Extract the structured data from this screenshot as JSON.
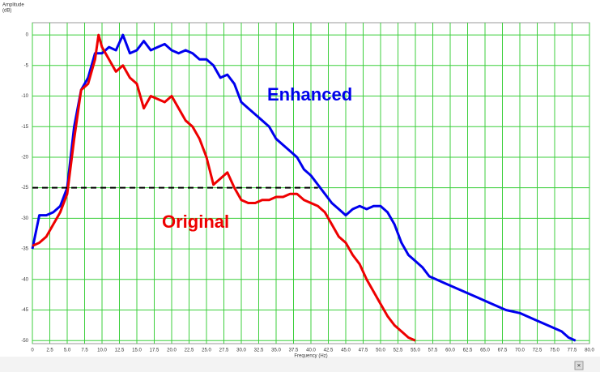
{
  "chart_data": {
    "type": "line",
    "y_label_lines": [
      "Amplitude",
      "(dB)"
    ],
    "x_label": "Frequency (Hz)",
    "xlim": [
      0,
      80
    ],
    "ylim": [
      -50.5,
      2
    ],
    "xticks": [
      0,
      2.5,
      {
        "value": 5,
        "label": "5.0"
      },
      7.5,
      {
        "value": 10,
        "label": "10.0"
      },
      12.5,
      {
        "value": 15,
        "label": "15.0"
      },
      17.5,
      {
        "value": 20,
        "label": "20.0"
      },
      22.5,
      {
        "value": 25,
        "label": "25.0"
      },
      27.5,
      {
        "value": 30,
        "label": "30.0"
      },
      32.5,
      {
        "value": 35,
        "label": "35.0"
      },
      37.5,
      {
        "value": 40,
        "label": "40.0"
      },
      42.5,
      {
        "value": 45,
        "label": "45.0"
      },
      47.5,
      {
        "value": 50,
        "label": "50.0"
      },
      52.5,
      {
        "value": 55,
        "label": "55.0"
      },
      57.5,
      {
        "value": 60,
        "label": "60.0"
      },
      62.5,
      {
        "value": 65,
        "label": "65.0"
      },
      67.5,
      {
        "value": 70,
        "label": "70.0"
      },
      72.5,
      {
        "value": 75,
        "label": "75.0"
      },
      77.5,
      {
        "value": 80,
        "label": "80.0"
      }
    ],
    "yticks": [
      0,
      -5,
      -10,
      -15,
      -20,
      -25,
      -30,
      -35,
      -40,
      -45,
      -50
    ],
    "grid": true,
    "grid_color": "#3ccf3c",
    "reference_line": {
      "y": -25,
      "x": [
        0,
        41
      ]
    },
    "series": [
      {
        "name": "Enhanced",
        "color": "#0000ee",
        "x": [
          0,
          1,
          2,
          3,
          4,
          5,
          6,
          7,
          8,
          9,
          10,
          11,
          12,
          13,
          14,
          15,
          16,
          17,
          18,
          19,
          20,
          21,
          22,
          23,
          24,
          25,
          26,
          27,
          28,
          29,
          30,
          31,
          32,
          33,
          34,
          35,
          36,
          37,
          38,
          39,
          40,
          41,
          42,
          43,
          44,
          45,
          46,
          47,
          48,
          49,
          50,
          51,
          52,
          53,
          54,
          55,
          56,
          57,
          58,
          59,
          60,
          62,
          64,
          66,
          68,
          70,
          72,
          74,
          76,
          77,
          78
        ],
        "values": [
          -35,
          -29.5,
          -29.5,
          -29,
          -28,
          -25,
          -15,
          -9,
          -7,
          -3,
          -3,
          -2,
          -2.5,
          0,
          -3,
          -2.5,
          -1,
          -2.5,
          -2,
          -1.5,
          -2.5,
          -3,
          -2.5,
          -3,
          -4,
          -4,
          -5,
          -7,
          -6.5,
          -8,
          -11,
          -12,
          -13,
          -14,
          -15,
          -17,
          -18,
          -19,
          -20,
          -22,
          -23,
          -24.5,
          -26,
          -27.5,
          -28.5,
          -29.5,
          -28.5,
          -28,
          -28.5,
          -28,
          -28,
          -29,
          -31,
          -34,
          -36,
          -37,
          -38,
          -39.5,
          -40,
          -40.5,
          -41,
          -42,
          -43,
          -44,
          -45,
          -45.5,
          -46.5,
          -47.5,
          -48.5,
          -49.5,
          -50
        ]
      },
      {
        "name": "Original",
        "color": "#ee0000",
        "x": [
          0,
          1,
          2,
          3,
          4,
          5,
          6,
          7,
          8,
          9,
          9.5,
          10,
          11,
          12,
          13,
          14,
          15,
          16,
          17,
          18,
          19,
          20,
          21,
          22,
          23,
          24,
          25,
          26,
          27,
          28,
          29,
          30,
          31,
          32,
          33,
          34,
          35,
          36,
          37,
          38,
          39,
          40,
          41,
          42,
          43,
          44,
          45,
          46,
          47,
          48,
          49,
          50,
          51,
          52,
          53,
          54,
          55
        ],
        "values": [
          -34.5,
          -34,
          -33,
          -31,
          -29,
          -26,
          -17,
          -9,
          -8,
          -4,
          0,
          -2,
          -4,
          -6,
          -5,
          -7,
          -8,
          -12,
          -10,
          -10.5,
          -11,
          -10,
          -12,
          -14,
          -15,
          -17,
          -20,
          -24.5,
          -23.5,
          -22.5,
          -25,
          -27,
          -27.5,
          -27.5,
          -27,
          -27,
          -26.5,
          -26.5,
          -26,
          -26,
          -27,
          -27.5,
          -28,
          -29,
          -31,
          -33,
          -34,
          -36,
          -37.5,
          -40,
          -42,
          -44,
          -46,
          -47.5,
          -48.5,
          -49.5,
          -50
        ]
      }
    ]
  }
}
